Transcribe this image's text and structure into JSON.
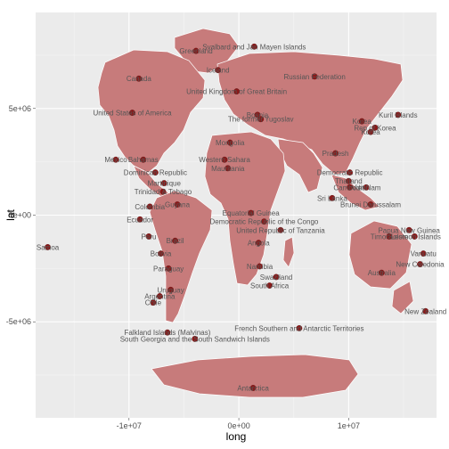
{
  "chart_data": {
    "type": "scatter",
    "title": "",
    "xlabel": "long",
    "ylabel": "lat",
    "xlim": [
      -18500000,
      18000000
    ],
    "ylim": [
      -9500000,
      9500000
    ],
    "xticks": [
      {
        "value": -10000000,
        "label": "-1e+07"
      },
      {
        "value": 0,
        "label": "0e+00"
      },
      {
        "value": 10000000,
        "label": "1e+07"
      }
    ],
    "yticks": [
      {
        "value": 5000000,
        "label": "5e+06"
      },
      {
        "value": 0,
        "label": "0e+00"
      },
      {
        "value": -5000000,
        "label": "-5e+06"
      }
    ],
    "grid": true,
    "legend": "none",
    "colors": {
      "panel": "#ebebeb",
      "grid_major": "#ffffff",
      "grid_minor": "#f5f5f5",
      "land": "#c77b7b",
      "point": "#8b1a1a",
      "label": "#555555"
    },
    "points": [
      {
        "label": "Svalbard and Jan Mayen Islands",
        "x": 1400000,
        "y": 7900000
      },
      {
        "label": "Greenland",
        "x": -3900000,
        "y": 7700000
      },
      {
        "label": "Iceland",
        "x": -1900000,
        "y": 6800000
      },
      {
        "label": "Canada",
        "x": -9100000,
        "y": 6400000
      },
      {
        "label": "Russian Federation",
        "x": 6900000,
        "y": 6500000
      },
      {
        "label": "United Kingdom of Great Britain",
        "x": -200000,
        "y": 5800000
      },
      {
        "label": "United States of America",
        "x": -9700000,
        "y": 4800000
      },
      {
        "label": "The former Yugoslav",
        "x": 2000000,
        "y": 4500000
      },
      {
        "label": "Bosnia",
        "x": 1700000,
        "y": 4700000
      },
      {
        "label": "Korea",
        "x": 11200000,
        "y": 4400000
      },
      {
        "label": "Rep of Korea",
        "x": 12400000,
        "y": 4100000
      },
      {
        "label": "Korea",
        "x": 12000000,
        "y": 3900000
      },
      {
        "label": "Kuril Islands",
        "x": 14500000,
        "y": 4700000
      },
      {
        "label": "Mongolia",
        "x": -800000,
        "y": 3400000
      },
      {
        "label": "Pradesh",
        "x": 8800000,
        "y": 2900000
      },
      {
        "label": "Western Sahara",
        "x": -1300000,
        "y": 2600000
      },
      {
        "label": "Mauritania",
        "x": -1000000,
        "y": 2200000
      },
      {
        "label": "Mexico",
        "x": -11200000,
        "y": 2600000
      },
      {
        "label": "Bahamas",
        "x": -8700000,
        "y": 2600000
      },
      {
        "label": "Dominican Republic",
        "x": -7600000,
        "y": 2000000
      },
      {
        "label": "Democratic Republic",
        "x": 10100000,
        "y": 2000000
      },
      {
        "label": "Thailand",
        "x": 10000000,
        "y": 1600000
      },
      {
        "label": "Cambodia",
        "x": 10100000,
        "y": 1300000
      },
      {
        "label": "Viet Nam",
        "x": 11600000,
        "y": 1300000
      },
      {
        "label": "Martinique",
        "x": -6800000,
        "y": 1500000
      },
      {
        "label": "Trinidad & Tobago",
        "x": -6900000,
        "y": 1100000
      },
      {
        "label": "Colombia",
        "x": -8100000,
        "y": 400000
      },
      {
        "label": "Guyana",
        "x": -5600000,
        "y": 500000
      },
      {
        "label": "Sri Lanka",
        "x": 8500000,
        "y": 800000
      },
      {
        "label": "Brunei Darussalam",
        "x": 12000000,
        "y": 500000
      },
      {
        "label": "Equatorial Guinea",
        "x": 1100000,
        "y": 100000
      },
      {
        "label": "Ecuador",
        "x": -9000000,
        "y": -200000
      },
      {
        "label": "Democratic Republic of the Congo",
        "x": 2300000,
        "y": -300000
      },
      {
        "label": "United Republic of Tanzania",
        "x": 3800000,
        "y": -700000
      },
      {
        "label": "Papua New Guinea",
        "x": 15500000,
        "y": -700000
      },
      {
        "label": "Solomon Islands",
        "x": 16000000,
        "y": -1000000
      },
      {
        "label": "Timor-Leste",
        "x": 13700000,
        "y": -1000000
      },
      {
        "label": "Samoa",
        "x": -17400000,
        "y": -1500000
      },
      {
        "label": "Peru",
        "x": -8200000,
        "y": -1000000
      },
      {
        "label": "Brazil",
        "x": -5800000,
        "y": -1200000
      },
      {
        "label": "Bolivia",
        "x": -7100000,
        "y": -1800000
      },
      {
        "label": "Vanuatu",
        "x": 16800000,
        "y": -1800000
      },
      {
        "label": "Angola",
        "x": 1800000,
        "y": -1300000
      },
      {
        "label": "Namibia",
        "x": 1900000,
        "y": -2400000
      },
      {
        "label": "Australia",
        "x": 13000000,
        "y": -2700000
      },
      {
        "label": "New Caledonia",
        "x": 16500000,
        "y": -2300000
      },
      {
        "label": "Paraguay",
        "x": -6400000,
        "y": -2500000
      },
      {
        "label": "Swaziland",
        "x": 3400000,
        "y": -2900000
      },
      {
        "label": "South Africa",
        "x": 2800000,
        "y": -3300000
      },
      {
        "label": "Uruguay",
        "x": -6200000,
        "y": -3500000
      },
      {
        "label": "Argentina",
        "x": -7200000,
        "y": -3800000
      },
      {
        "label": "Chile",
        "x": -7800000,
        "y": -4100000
      },
      {
        "label": "New Zealand",
        "x": 17000000,
        "y": -4500000
      },
      {
        "label": "French Southern and Antarctic Territories",
        "x": 5500000,
        "y": -5300000
      },
      {
        "label": "Falkland Islands (Malvinas)",
        "x": -6500000,
        "y": -5500000
      },
      {
        "label": "South Georgia and the South Sandwich Islands",
        "x": -4000000,
        "y": -5800000
      },
      {
        "label": "Antarctica",
        "x": 1300000,
        "y": -8100000
      }
    ]
  }
}
